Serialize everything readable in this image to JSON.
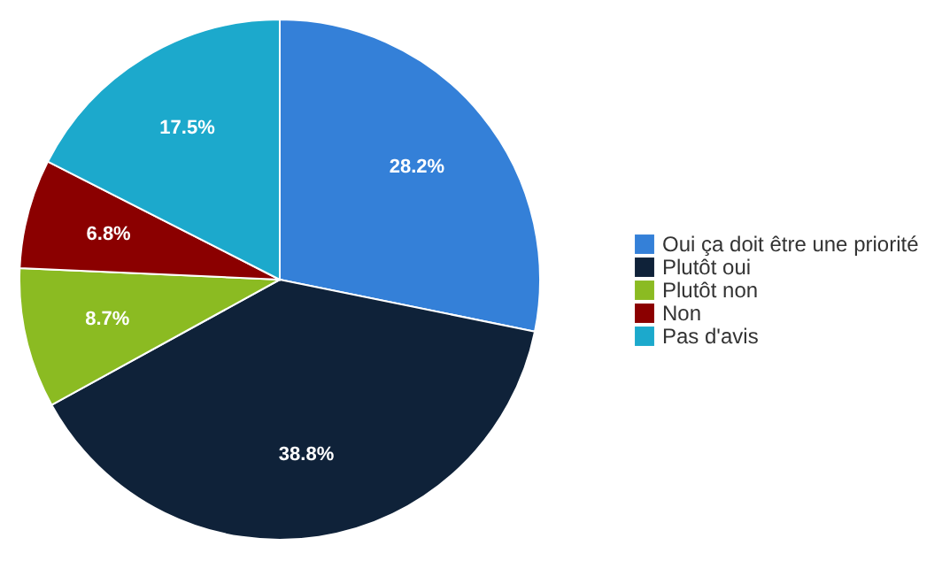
{
  "chart_data": {
    "type": "pie",
    "categories": [
      "Oui ça doit être une priorité",
      "Plutôt oui",
      "Plutôt non",
      "Non",
      "Pas d'avis"
    ],
    "values": [
      28.2,
      38.8,
      8.7,
      6.8,
      17.5
    ],
    "colors": [
      "#3480d8",
      "#0f2239",
      "#8bbb22",
      "#8b0000",
      "#1ca9cc"
    ],
    "value_labels": [
      "28.2%",
      "38.8%",
      "8.7%",
      "6.8%",
      "17.5%"
    ],
    "legend": "right"
  }
}
